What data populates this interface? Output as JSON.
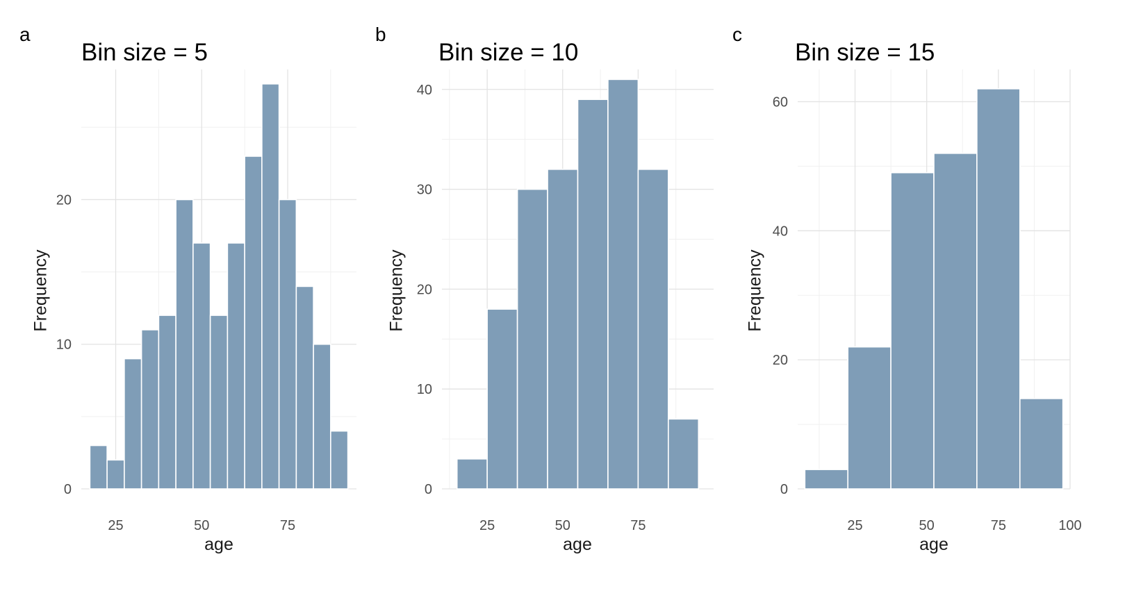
{
  "chart_data": [
    {
      "panel_tag": "a",
      "type": "bar",
      "title": "Bin size = 5",
      "xlabel": "age",
      "ylabel": "Frequency",
      "bin_width": 5,
      "xlim": [
        15,
        95
      ],
      "ylim": [
        0,
        29
      ],
      "x_ticks": [
        25,
        50,
        75
      ],
      "y_ticks": [
        0,
        10,
        20
      ],
      "bins": [
        {
          "x0": 17.5,
          "x1": 22.5,
          "count": 3
        },
        {
          "x0": 22.5,
          "x1": 27.5,
          "count": 2
        },
        {
          "x0": 27.5,
          "x1": 32.5,
          "count": 9
        },
        {
          "x0": 32.5,
          "x1": 37.5,
          "count": 11
        },
        {
          "x0": 37.5,
          "x1": 42.5,
          "count": 12
        },
        {
          "x0": 42.5,
          "x1": 47.5,
          "count": 20
        },
        {
          "x0": 47.5,
          "x1": 52.5,
          "count": 17
        },
        {
          "x0": 52.5,
          "x1": 57.5,
          "count": 12
        },
        {
          "x0": 57.5,
          "x1": 62.5,
          "count": 17
        },
        {
          "x0": 62.5,
          "x1": 67.5,
          "count": 23
        },
        {
          "x0": 67.5,
          "x1": 72.5,
          "count": 28
        },
        {
          "x0": 72.5,
          "x1": 77.5,
          "count": 20
        },
        {
          "x0": 77.5,
          "x1": 82.5,
          "count": 14
        },
        {
          "x0": 82.5,
          "x1": 87.5,
          "count": 10
        },
        {
          "x0": 87.5,
          "x1": 92.5,
          "count": 4
        }
      ],
      "bar_color": "#7f9db7",
      "grid": true
    },
    {
      "panel_tag": "b",
      "type": "bar",
      "title": "Bin size = 10",
      "xlabel": "age",
      "ylabel": "Frequency",
      "bin_width": 10,
      "xlim": [
        10,
        100
      ],
      "ylim": [
        0,
        42
      ],
      "x_ticks": [
        25,
        50,
        75
      ],
      "y_ticks": [
        0,
        10,
        20,
        30,
        40
      ],
      "bins": [
        {
          "x0": 15,
          "x1": 25,
          "count": 3
        },
        {
          "x0": 25,
          "x1": 35,
          "count": 18
        },
        {
          "x0": 35,
          "x1": 45,
          "count": 30
        },
        {
          "x0": 45,
          "x1": 55,
          "count": 32
        },
        {
          "x0": 55,
          "x1": 65,
          "count": 39
        },
        {
          "x0": 65,
          "x1": 75,
          "count": 41
        },
        {
          "x0": 75,
          "x1": 85,
          "count": 32
        },
        {
          "x0": 85,
          "x1": 95,
          "count": 7
        }
      ],
      "bar_color": "#7f9db7",
      "grid": true
    },
    {
      "panel_tag": "c",
      "type": "bar",
      "title": "Bin size = 15",
      "xlabel": "age",
      "ylabel": "Frequency",
      "bin_width": 15,
      "xlim": [
        5,
        100
      ],
      "ylim": [
        0,
        65
      ],
      "x_ticks": [
        25,
        50,
        75,
        100
      ],
      "y_ticks": [
        0,
        20,
        40,
        60
      ],
      "bins": [
        {
          "x0": 7.5,
          "x1": 22.5,
          "count": 3
        },
        {
          "x0": 22.5,
          "x1": 37.5,
          "count": 22
        },
        {
          "x0": 37.5,
          "x1": 52.5,
          "count": 49
        },
        {
          "x0": 52.5,
          "x1": 67.5,
          "count": 52
        },
        {
          "x0": 67.5,
          "x1": 82.5,
          "count": 62
        },
        {
          "x0": 82.5,
          "x1": 97.5,
          "count": 14
        }
      ],
      "bar_color": "#7f9db7",
      "grid": true
    }
  ]
}
